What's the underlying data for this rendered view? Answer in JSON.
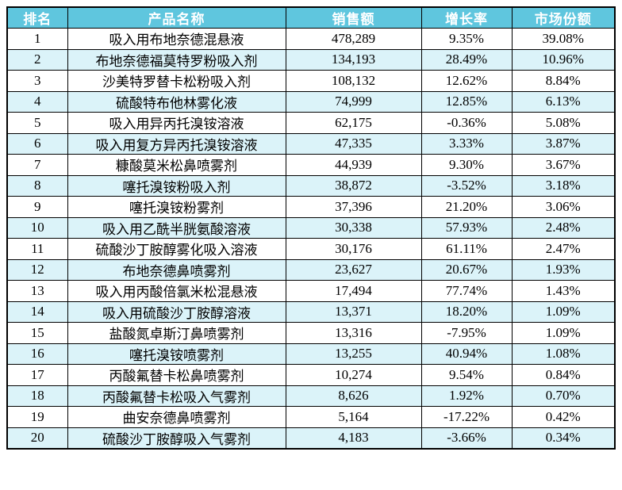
{
  "colors": {
    "header_bg": "#5fc6de",
    "stripe_bg": "#dbf3f9",
    "border_color": "#000000",
    "header_text": "#ffffff",
    "body_text": "#000000"
  },
  "chart_data": {
    "type": "table",
    "columns": [
      "排名",
      "产品名称",
      "销售额",
      "增长率",
      "市场份额"
    ],
    "rows": [
      [
        "1",
        "吸入用布地奈德混悬液",
        "478,289",
        "9.35%",
        "39.08%"
      ],
      [
        "2",
        "布地奈德福莫特罗粉吸入剂",
        "134,193",
        "28.49%",
        "10.96%"
      ],
      [
        "3",
        "沙美特罗替卡松粉吸入剂",
        "108,132",
        "12.62%",
        "8.84%"
      ],
      [
        "4",
        "硫酸特布他林雾化液",
        "74,999",
        "12.85%",
        "6.13%"
      ],
      [
        "5",
        "吸入用异丙托溴铵溶液",
        "62,175",
        "-0.36%",
        "5.08%"
      ],
      [
        "6",
        "吸入用复方异丙托溴铵溶液",
        "47,335",
        "3.33%",
        "3.87%"
      ],
      [
        "7",
        "糠酸莫米松鼻喷雾剂",
        "44,939",
        "9.30%",
        "3.67%"
      ],
      [
        "8",
        "噻托溴铵粉吸入剂",
        "38,872",
        "-3.52%",
        "3.18%"
      ],
      [
        "9",
        "噻托溴铵粉雾剂",
        "37,396",
        "21.20%",
        "3.06%"
      ],
      [
        "10",
        "吸入用乙酰半胱氨酸溶液",
        "30,338",
        "57.93%",
        "2.48%"
      ],
      [
        "11",
        "硫酸沙丁胺醇雾化吸入溶液",
        "30,176",
        "61.11%",
        "2.47%"
      ],
      [
        "12",
        "布地奈德鼻喷雾剂",
        "23,627",
        "20.67%",
        "1.93%"
      ],
      [
        "13",
        "吸入用丙酸倍氯米松混悬液",
        "17,494",
        "77.74%",
        "1.43%"
      ],
      [
        "14",
        "吸入用硫酸沙丁胺醇溶液",
        "13,371",
        "18.20%",
        "1.09%"
      ],
      [
        "15",
        "盐酸氮卓斯汀鼻喷雾剂",
        "13,316",
        "-7.95%",
        "1.09%"
      ],
      [
        "16",
        "噻托溴铵喷雾剂",
        "13,255",
        "40.94%",
        "1.08%"
      ],
      [
        "17",
        "丙酸氟替卡松鼻喷雾剂",
        "10,274",
        "9.54%",
        "0.84%"
      ],
      [
        "18",
        "丙酸氟替卡松吸入气雾剂",
        "8,626",
        "1.92%",
        "0.70%"
      ],
      [
        "19",
        "曲安奈德鼻喷雾剂",
        "5,164",
        "-17.22%",
        "0.42%"
      ],
      [
        "20",
        "硫酸沙丁胺醇吸入气雾剂",
        "4,183",
        "-3.66%",
        "0.34%"
      ]
    ]
  }
}
